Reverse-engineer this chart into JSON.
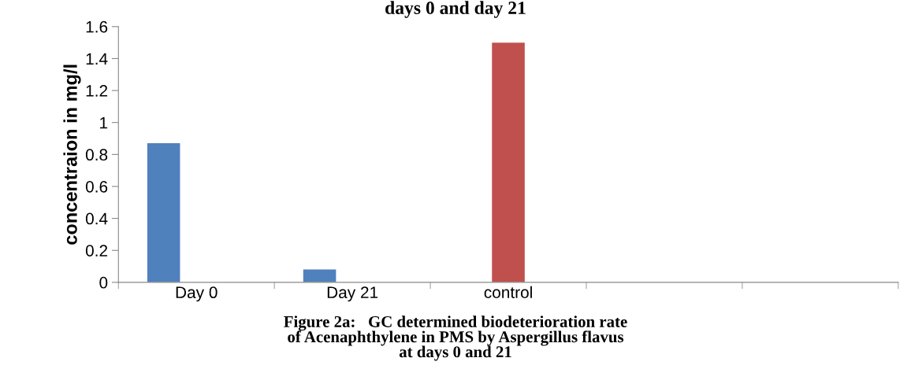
{
  "chart_data": {
    "type": "bar",
    "title": "days 0 and day 21",
    "categories": [
      "Day 0",
      "Day 21",
      "control",
      null,
      null
    ],
    "series": [
      {
        "color": "#4f81bd",
        "values": [
          0.87,
          0.08,
          null,
          null,
          null
        ]
      },
      {
        "color": "#c0504d",
        "values": [
          null,
          null,
          1.5,
          null,
          null
        ]
      }
    ],
    "ylabel": "concentraion in mg/l",
    "ylim": [
      0,
      1.6
    ],
    "yticks": [
      0,
      0.2,
      0.4,
      0.6,
      0.8,
      1,
      1.2,
      1.4,
      1.6
    ],
    "grid": false,
    "legend": false,
    "annotations": [
      "Figure 2a:   GC determined biodeterioration rate\nof Acenaphthylene in PMS by Aspergillus flavus\nat days 0 and 21"
    ]
  }
}
